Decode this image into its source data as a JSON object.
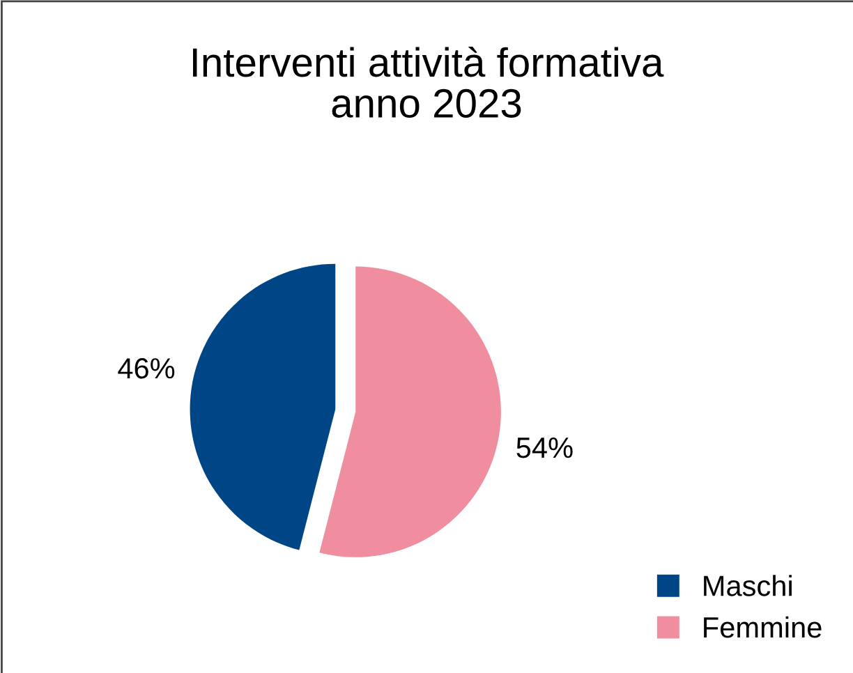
{
  "chart_data": {
    "type": "pie",
    "title": "Interventi attività formativa\nanno 2023",
    "categories": [
      "Maschi",
      "Femmine"
    ],
    "values": [
      46,
      54
    ],
    "value_labels": [
      "46%",
      "54%"
    ],
    "colors": [
      "#004586",
      "#f08ea0"
    ],
    "legend": "bottom right"
  }
}
